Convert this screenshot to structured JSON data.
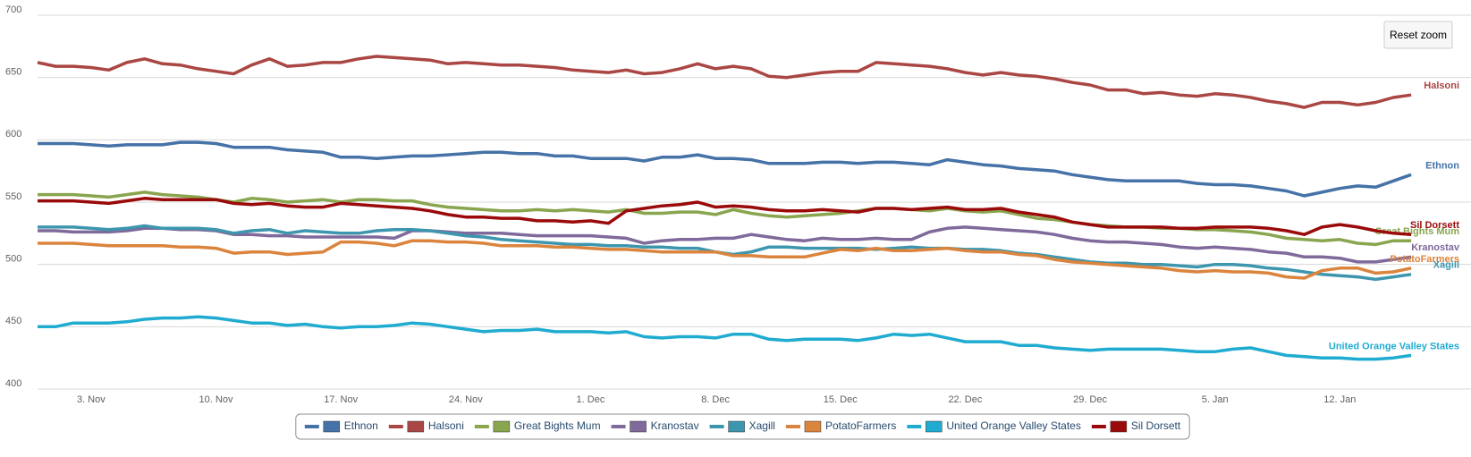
{
  "chart_data": {
    "type": "line",
    "reset_zoom_button": "Reset zoom",
    "ylim": [
      400,
      700
    ],
    "yticks": [
      400,
      450,
      500,
      550,
      600,
      650,
      700
    ],
    "grid": true,
    "categories": [
      null,
      null,
      null,
      "3. Nov",
      null,
      null,
      null,
      null,
      null,
      null,
      "10. Nov",
      null,
      null,
      null,
      null,
      null,
      null,
      "17. Nov",
      null,
      null,
      null,
      null,
      null,
      null,
      "24. Nov",
      null,
      null,
      null,
      null,
      null,
      null,
      "1. Dec",
      null,
      null,
      null,
      null,
      null,
      null,
      "8. Dec",
      null,
      null,
      null,
      null,
      null,
      null,
      "15. Dec",
      null,
      null,
      null,
      null,
      null,
      null,
      "22. Dec",
      null,
      null,
      null,
      null,
      null,
      null,
      "29. Dec",
      null,
      null,
      null,
      null,
      null,
      null,
      "5. Jan",
      null,
      null,
      null,
      null,
      null,
      null,
      "12. Jan",
      null,
      null,
      null,
      null
    ],
    "series": [
      {
        "name": "Ethnon",
        "color": "#4572a7",
        "values": [
          597,
          597,
          597,
          596,
          595,
          596,
          596,
          596,
          598,
          598,
          597,
          594,
          594,
          594,
          592,
          591,
          590,
          586,
          586,
          585,
          586,
          587,
          587,
          588,
          589,
          590,
          590,
          589,
          589,
          587,
          587,
          585,
          585,
          585,
          583,
          586,
          586,
          588,
          585,
          585,
          584,
          581,
          581,
          581,
          582,
          582,
          581,
          582,
          582,
          581,
          580,
          584,
          582,
          580,
          579,
          577,
          576,
          575,
          572,
          570,
          568,
          567,
          567,
          567,
          567,
          565,
          564,
          564,
          563,
          561,
          559,
          555,
          558,
          561,
          563,
          562,
          567,
          572
        ]
      },
      {
        "name": "Halsoni",
        "color": "#aa4643",
        "values": [
          662,
          659,
          659,
          658,
          656,
          662,
          665,
          661,
          660,
          657,
          655,
          653,
          660,
          665,
          659,
          660,
          662,
          662,
          665,
          667,
          666,
          665,
          664,
          661,
          662,
          661,
          660,
          660,
          659,
          658,
          656,
          655,
          654,
          656,
          653,
          654,
          657,
          661,
          657,
          659,
          657,
          651,
          650,
          652,
          654,
          655,
          655,
          662,
          661,
          660,
          659,
          657,
          654,
          652,
          654,
          652,
          651,
          649,
          646,
          644,
          640,
          640,
          637,
          638,
          636,
          635,
          637,
          636,
          634,
          631,
          629,
          626,
          630,
          630,
          628,
          630,
          634,
          636
        ]
      },
      {
        "name": "Great Bights Mum",
        "color": "#89a54e",
        "values": [
          556,
          556,
          556,
          555,
          554,
          556,
          558,
          556,
          555,
          554,
          552,
          550,
          553,
          552,
          550,
          551,
          552,
          550,
          552,
          552,
          551,
          551,
          548,
          546,
          545,
          544,
          543,
          543,
          544,
          543,
          544,
          543,
          542,
          544,
          541,
          541,
          542,
          542,
          540,
          544,
          541,
          539,
          538,
          539,
          540,
          541,
          543,
          545,
          545,
          544,
          543,
          545,
          543,
          542,
          543,
          540,
          537,
          536,
          534,
          532,
          531,
          530,
          530,
          529,
          529,
          528,
          528,
          527,
          526,
          524,
          521,
          520,
          519,
          520,
          517,
          516,
          519,
          519
        ]
      },
      {
        "name": "Kranostav",
        "color": "#80699b",
        "values": [
          527,
          527,
          526,
          526,
          526,
          527,
          529,
          529,
          528,
          528,
          527,
          524,
          524,
          523,
          523,
          522,
          522,
          522,
          522,
          522,
          521,
          527,
          527,
          526,
          525,
          525,
          525,
          524,
          523,
          523,
          523,
          523,
          522,
          521,
          517,
          519,
          520,
          520,
          521,
          521,
          524,
          522,
          520,
          519,
          521,
          520,
          520,
          521,
          520,
          520,
          526,
          529,
          530,
          529,
          528,
          527,
          526,
          524,
          521,
          519,
          518,
          518,
          517,
          516,
          514,
          513,
          514,
          513,
          512,
          510,
          509,
          506,
          506,
          505,
          502,
          502,
          504,
          506
        ]
      },
      {
        "name": "Xagill",
        "color": "#3d96ae",
        "values": [
          530,
          530,
          530,
          529,
          528,
          529,
          531,
          529,
          529,
          529,
          528,
          525,
          527,
          528,
          525,
          527,
          526,
          525,
          525,
          527,
          528,
          528,
          527,
          525,
          523,
          522,
          520,
          519,
          518,
          517,
          516,
          516,
          515,
          515,
          514,
          514,
          513,
          513,
          510,
          508,
          510,
          514,
          514,
          513,
          513,
          513,
          513,
          512,
          513,
          514,
          513,
          513,
          512,
          512,
          511,
          509,
          508,
          506,
          504,
          502,
          501,
          501,
          500,
          500,
          499,
          498,
          500,
          500,
          499,
          497,
          496,
          494,
          492,
          491,
          490,
          488,
          490,
          492
        ]
      },
      {
        "name": "PotatoFarmers",
        "color": "#db843d",
        "values": [
          517,
          517,
          517,
          516,
          515,
          515,
          515,
          515,
          514,
          514,
          513,
          509,
          510,
          510,
          508,
          509,
          510,
          518,
          518,
          517,
          515,
          519,
          519,
          518,
          518,
          517,
          515,
          515,
          515,
          514,
          514,
          513,
          512,
          512,
          511,
          510,
          510,
          510,
          510,
          507,
          507,
          506,
          506,
          506,
          509,
          512,
          511,
          513,
          511,
          511,
          512,
          513,
          511,
          510,
          510,
          508,
          507,
          504,
          502,
          501,
          500,
          499,
          498,
          497,
          495,
          494,
          495,
          494,
          494,
          493,
          490,
          489,
          495,
          497,
          497,
          493,
          494,
          497
        ]
      },
      {
        "name": "United Orange Valley States",
        "color": "#20abd0",
        "values": [
          450,
          450,
          453,
          453,
          453,
          454,
          456,
          457,
          457,
          458,
          457,
          455,
          453,
          453,
          451,
          452,
          450,
          449,
          450,
          450,
          451,
          453,
          452,
          450,
          448,
          446,
          447,
          447,
          448,
          446,
          446,
          446,
          445,
          446,
          442,
          441,
          442,
          442,
          441,
          444,
          444,
          440,
          439,
          440,
          440,
          440,
          439,
          441,
          444,
          443,
          444,
          441,
          438,
          438,
          438,
          435,
          435,
          433,
          432,
          431,
          432,
          432,
          432,
          432,
          431,
          430,
          430,
          432,
          433,
          430,
          427,
          426,
          425,
          425,
          424,
          424,
          425,
          427
        ]
      },
      {
        "name": "Sil Dorsett",
        "color": "#9b0a0a",
        "values": [
          551,
          551,
          551,
          550,
          549,
          551,
          553,
          552,
          552,
          552,
          552,
          549,
          548,
          549,
          547,
          546,
          546,
          549,
          548,
          547,
          546,
          545,
          543,
          540,
          538,
          538,
          537,
          537,
          535,
          535,
          534,
          535,
          533,
          543,
          545,
          547,
          548,
          550,
          546,
          547,
          546,
          544,
          543,
          543,
          544,
          543,
          542,
          545,
          545,
          544,
          545,
          546,
          544,
          544,
          545,
          542,
          540,
          538,
          534,
          532,
          530,
          530,
          530,
          530,
          529,
          529,
          530,
          530,
          530,
          529,
          527,
          524,
          530,
          532,
          530,
          527,
          525,
          524
        ]
      }
    ]
  }
}
